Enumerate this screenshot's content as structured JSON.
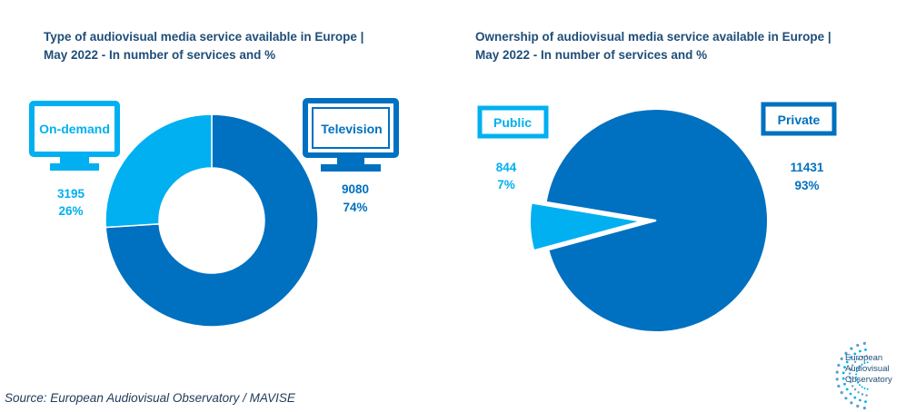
{
  "colors": {
    "dark": "#0070c0",
    "light": "#00b0f0",
    "text_dark": "#1f4e79",
    "white": "#ffffff"
  },
  "chart_data": [
    {
      "type": "pie",
      "donut": true,
      "title_lines": [
        "Type of audiovisual media service available in Europe |",
        "May 2022 - In number of services and %"
      ],
      "slices": [
        {
          "label": "Television",
          "value": 9080,
          "percent": "74%",
          "color": "#0070c0",
          "icon": "television-monitor-icon"
        },
        {
          "label": "On-demand",
          "value": 3195,
          "percent": "26%",
          "color": "#00b0f0",
          "icon": "monitor-icon"
        }
      ]
    },
    {
      "type": "pie",
      "donut": false,
      "title_lines": [
        "Ownership of audiovisual media service available in Europe |",
        "May 2022 - In number of services and %"
      ],
      "slices": [
        {
          "label": "Private",
          "value": 11431,
          "percent": "93%",
          "color": "#0070c0"
        },
        {
          "label": "Public",
          "value": 844,
          "percent": "7%",
          "color": "#00b0f0",
          "exploded": true
        }
      ]
    }
  ],
  "source": "Source: European Audiovisual Observatory / MAVISE",
  "logo": {
    "name": "european-audiovisual-observatory-logo",
    "lines": [
      "European",
      "Audiovisual",
      "Observatory"
    ]
  }
}
